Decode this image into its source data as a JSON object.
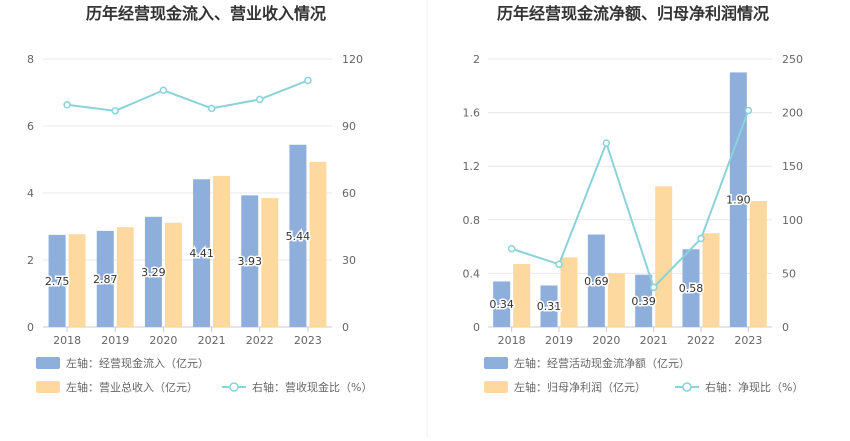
{
  "chart_data": [
    {
      "type": "bar",
      "title": "历年经营现金流入、营业收入情况",
      "categories": [
        "2018",
        "2019",
        "2020",
        "2021",
        "2022",
        "2023"
      ],
      "ylim_left": [
        0,
        8
      ],
      "left_ticks": [
        "0",
        "2",
        "4",
        "6",
        "8"
      ],
      "ylim_right": [
        0,
        120
      ],
      "right_ticks": [
        "0",
        "30",
        "60",
        "90",
        "120"
      ],
      "series": [
        {
          "name": "左轴：经营现金流入（亿元）",
          "kind": "bar",
          "axis": "left",
          "color": "#8eaedc",
          "values": [
            2.75,
            2.87,
            3.29,
            4.41,
            3.93,
            5.44
          ],
          "labels": [
            "2.75",
            "2.87",
            "3.29",
            "4.41",
            "3.93",
            "5.44"
          ]
        },
        {
          "name": "左轴：营业总收入（亿元）",
          "kind": "bar",
          "axis": "left",
          "color": "#fdd9a0",
          "values": [
            2.77,
            2.98,
            3.11,
            4.51,
            3.85,
            4.93
          ]
        },
        {
          "name": "右轴：营收现金比（%）",
          "kind": "line",
          "axis": "right",
          "color": "#89d3d9",
          "values": [
            99.5,
            96.8,
            106.0,
            97.9,
            101.9,
            110.4
          ]
        }
      ],
      "legend_placement": "bottom",
      "grid": true
    },
    {
      "type": "bar",
      "title": "历年经营现金流净额、归母净利润情况",
      "categories": [
        "2018",
        "2019",
        "2020",
        "2021",
        "2022",
        "2023"
      ],
      "ylim_left": [
        0,
        2
      ],
      "left_ticks": [
        "0",
        "0.4",
        "0.8",
        "1.2",
        "1.6",
        "2"
      ],
      "ylim_right": [
        0,
        250
      ],
      "right_ticks": [
        "0",
        "50",
        "100",
        "150",
        "200",
        "250"
      ],
      "series": [
        {
          "name": "左轴：经营活动现金流净额（亿元）",
          "kind": "bar",
          "axis": "left",
          "color": "#8eaedc",
          "values": [
            0.34,
            0.31,
            0.69,
            0.39,
            0.58,
            1.9
          ],
          "labels": [
            "0.34",
            "0.31",
            "0.69",
            "0.39",
            "0.58",
            "1.90"
          ]
        },
        {
          "name": "左轴：归母净利润（亿元）",
          "kind": "bar",
          "axis": "left",
          "color": "#fdd9a0",
          "values": [
            0.47,
            0.52,
            0.4,
            1.05,
            0.7,
            0.94
          ]
        },
        {
          "name": "右轴：净现比（%）",
          "kind": "line",
          "axis": "right",
          "color": "#89d3d9",
          "values": [
            73.0,
            58.5,
            171.5,
            37.0,
            82.5,
            202.0
          ]
        }
      ],
      "legend_placement": "bottom",
      "grid": true
    }
  ]
}
